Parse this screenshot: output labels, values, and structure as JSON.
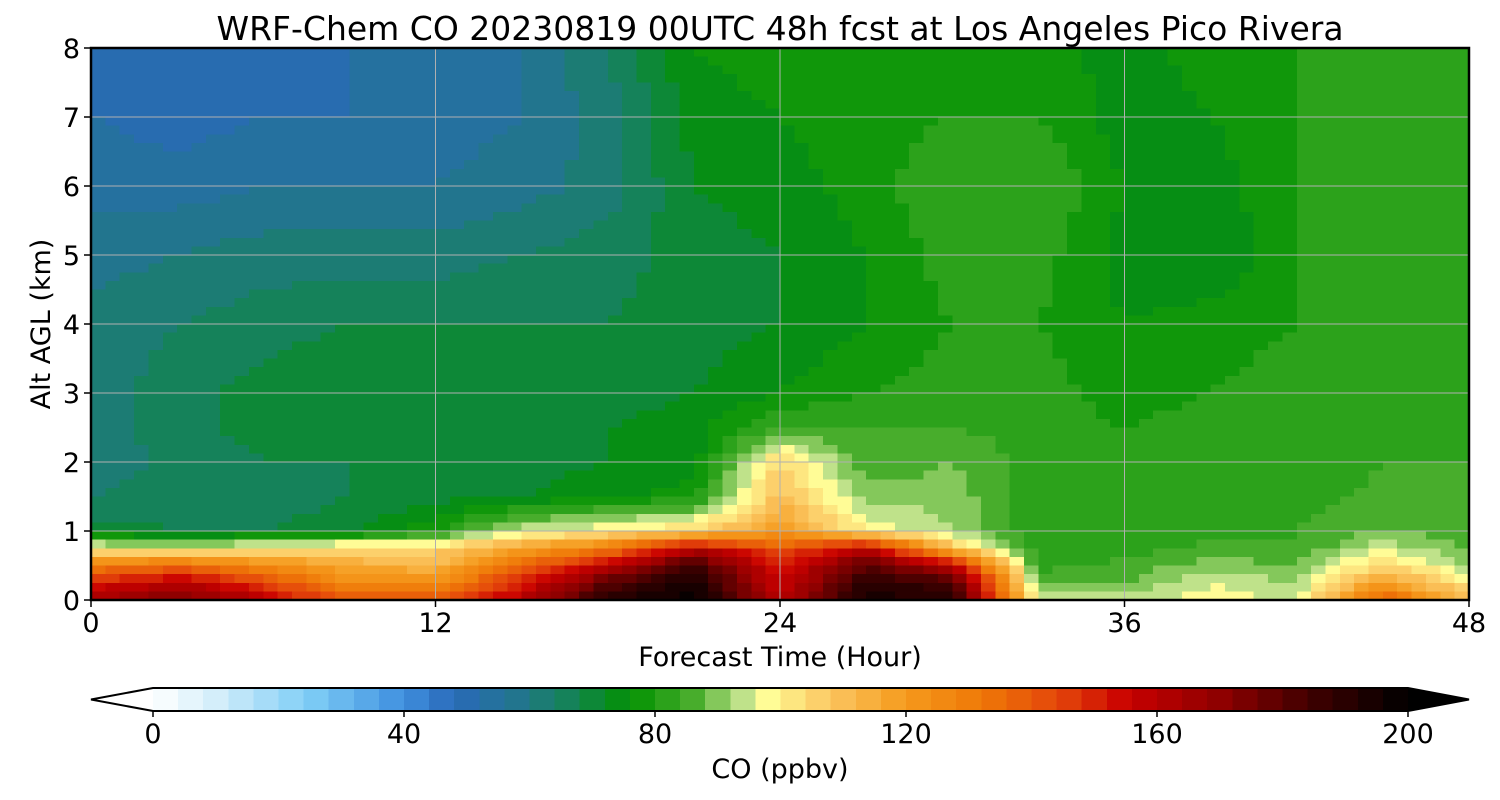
{
  "chart_data": {
    "type": "heatmap",
    "title": "WRF-Chem CO  20230819 00UTC 48h fcst at Los Angeles Pico Rivera",
    "xlabel": "Forecast Time (Hour)",
    "ylabel": "Alt AGL (km)",
    "xlim": [
      0,
      48
    ],
    "ylim": [
      0,
      8
    ],
    "x_ticks": [
      0,
      12,
      24,
      36,
      48
    ],
    "y_ticks": [
      0,
      1,
      2,
      3,
      4,
      5,
      6,
      7,
      8
    ],
    "grid": true,
    "x": [
      0,
      3,
      6,
      9,
      12,
      15,
      18,
      21,
      24,
      27,
      30,
      33,
      36,
      39,
      42,
      45,
      48
    ],
    "y": [
      0,
      0.25,
      0.5,
      0.75,
      1,
      1.5,
      2,
      2.5,
      3,
      4,
      5,
      6,
      7,
      8
    ],
    "z": [
      [
        165,
        175,
        160,
        140,
        140,
        160,
        190,
        200,
        160,
        195,
        190,
        95,
        95,
        98,
        95,
        140,
        110
      ],
      [
        150,
        160,
        145,
        125,
        125,
        150,
        180,
        195,
        155,
        190,
        185,
        88,
        88,
        96,
        92,
        120,
        100
      ],
      [
        130,
        135,
        125,
        115,
        112,
        135,
        160,
        185,
        150,
        180,
        160,
        82,
        85,
        90,
        88,
        105,
        92
      ],
      [
        100,
        95,
        102,
        105,
        105,
        118,
        130,
        160,
        140,
        160,
        110,
        80,
        82,
        85,
        84,
        95,
        88
      ],
      [
        70,
        68,
        68,
        70,
        80,
        95,
        100,
        105,
        120,
        100,
        92,
        80,
        80,
        82,
        84,
        88,
        86
      ],
      [
        64,
        66,
        66,
        68,
        70,
        72,
        75,
        78,
        110,
        90,
        90,
        82,
        80,
        82,
        82,
        85,
        84
      ],
      [
        62,
        65,
        68,
        68,
        70,
        70,
        72,
        74,
        105,
        85,
        88,
        82,
        80,
        84,
        82,
        84,
        84
      ],
      [
        62,
        66,
        70,
        70,
        72,
        72,
        72,
        74,
        84,
        84,
        84,
        82,
        80,
        82,
        84,
        82,
        84
      ],
      [
        62,
        66,
        70,
        72,
        72,
        70,
        70,
        72,
        76,
        80,
        82,
        82,
        78,
        80,
        82,
        82,
        82
      ],
      [
        62,
        64,
        66,
        68,
        68,
        68,
        68,
        70,
        72,
        76,
        80,
        80,
        76,
        78,
        80,
        82,
        80
      ],
      [
        58,
        60,
        62,
        62,
        62,
        64,
        66,
        70,
        72,
        76,
        82,
        82,
        74,
        72,
        80,
        82,
        82
      ],
      [
        55,
        54,
        56,
        56,
        56,
        58,
        62,
        72,
        74,
        78,
        84,
        84,
        76,
        74,
        80,
        84,
        82
      ],
      [
        52,
        50,
        52,
        52,
        54,
        56,
        62,
        74,
        76,
        78,
        80,
        80,
        74,
        76,
        80,
        84,
        84
      ],
      [
        52,
        50,
        50,
        52,
        54,
        56,
        64,
        76,
        78,
        80,
        80,
        78,
        74,
        78,
        80,
        82,
        84
      ]
    ],
    "colorbar": {
      "label": "CO  (ppbv)",
      "ticks": [
        0,
        40,
        80,
        120,
        160,
        200
      ],
      "range": [
        0,
        200
      ],
      "extend": "both",
      "orientation": "horizontal"
    }
  }
}
